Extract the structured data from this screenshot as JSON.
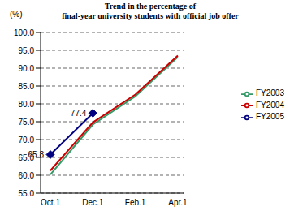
{
  "chart_data": {
    "type": "line",
    "title": "Trend in the percentage of\nfinal-year university students with official job offer",
    "y_label": "(%)",
    "categories": [
      "Oct.1",
      "Dec.1",
      "Feb.1",
      "Apr.1"
    ],
    "series": [
      {
        "name": "FY2003",
        "color": "#339966",
        "marker": "none",
        "line_style": "solid",
        "values": [
          60.2,
          74.2,
          82.1,
          93.1
        ]
      },
      {
        "name": "FY2004",
        "color": "#cc0000",
        "marker": "none",
        "line_style": "solid",
        "values": [
          61.3,
          74.8,
          82.6,
          93.5
        ]
      },
      {
        "name": "FY2005",
        "color": "#000080",
        "marker": "diamond",
        "line_style": "solid",
        "data_labels": true,
        "values": [
          65.8,
          77.4,
          null,
          null
        ]
      }
    ],
    "ylim": [
      55,
      100
    ],
    "yticks": [
      {
        "value": 55,
        "label": "55.0"
      },
      {
        "value": 60,
        "label": "60.0"
      },
      {
        "value": 65,
        "label": "65.0"
      },
      {
        "value": 70,
        "label": "70.0"
      },
      {
        "value": 75,
        "label": "75.0"
      },
      {
        "value": 80,
        "label": "80.0"
      },
      {
        "value": 85,
        "label": "85.0"
      },
      {
        "value": 90,
        "label": "90.0"
      },
      {
        "value": 95,
        "label": "95.0"
      },
      {
        "value": 100,
        "label": "100.0"
      }
    ],
    "grid": true,
    "legend": "right"
  }
}
